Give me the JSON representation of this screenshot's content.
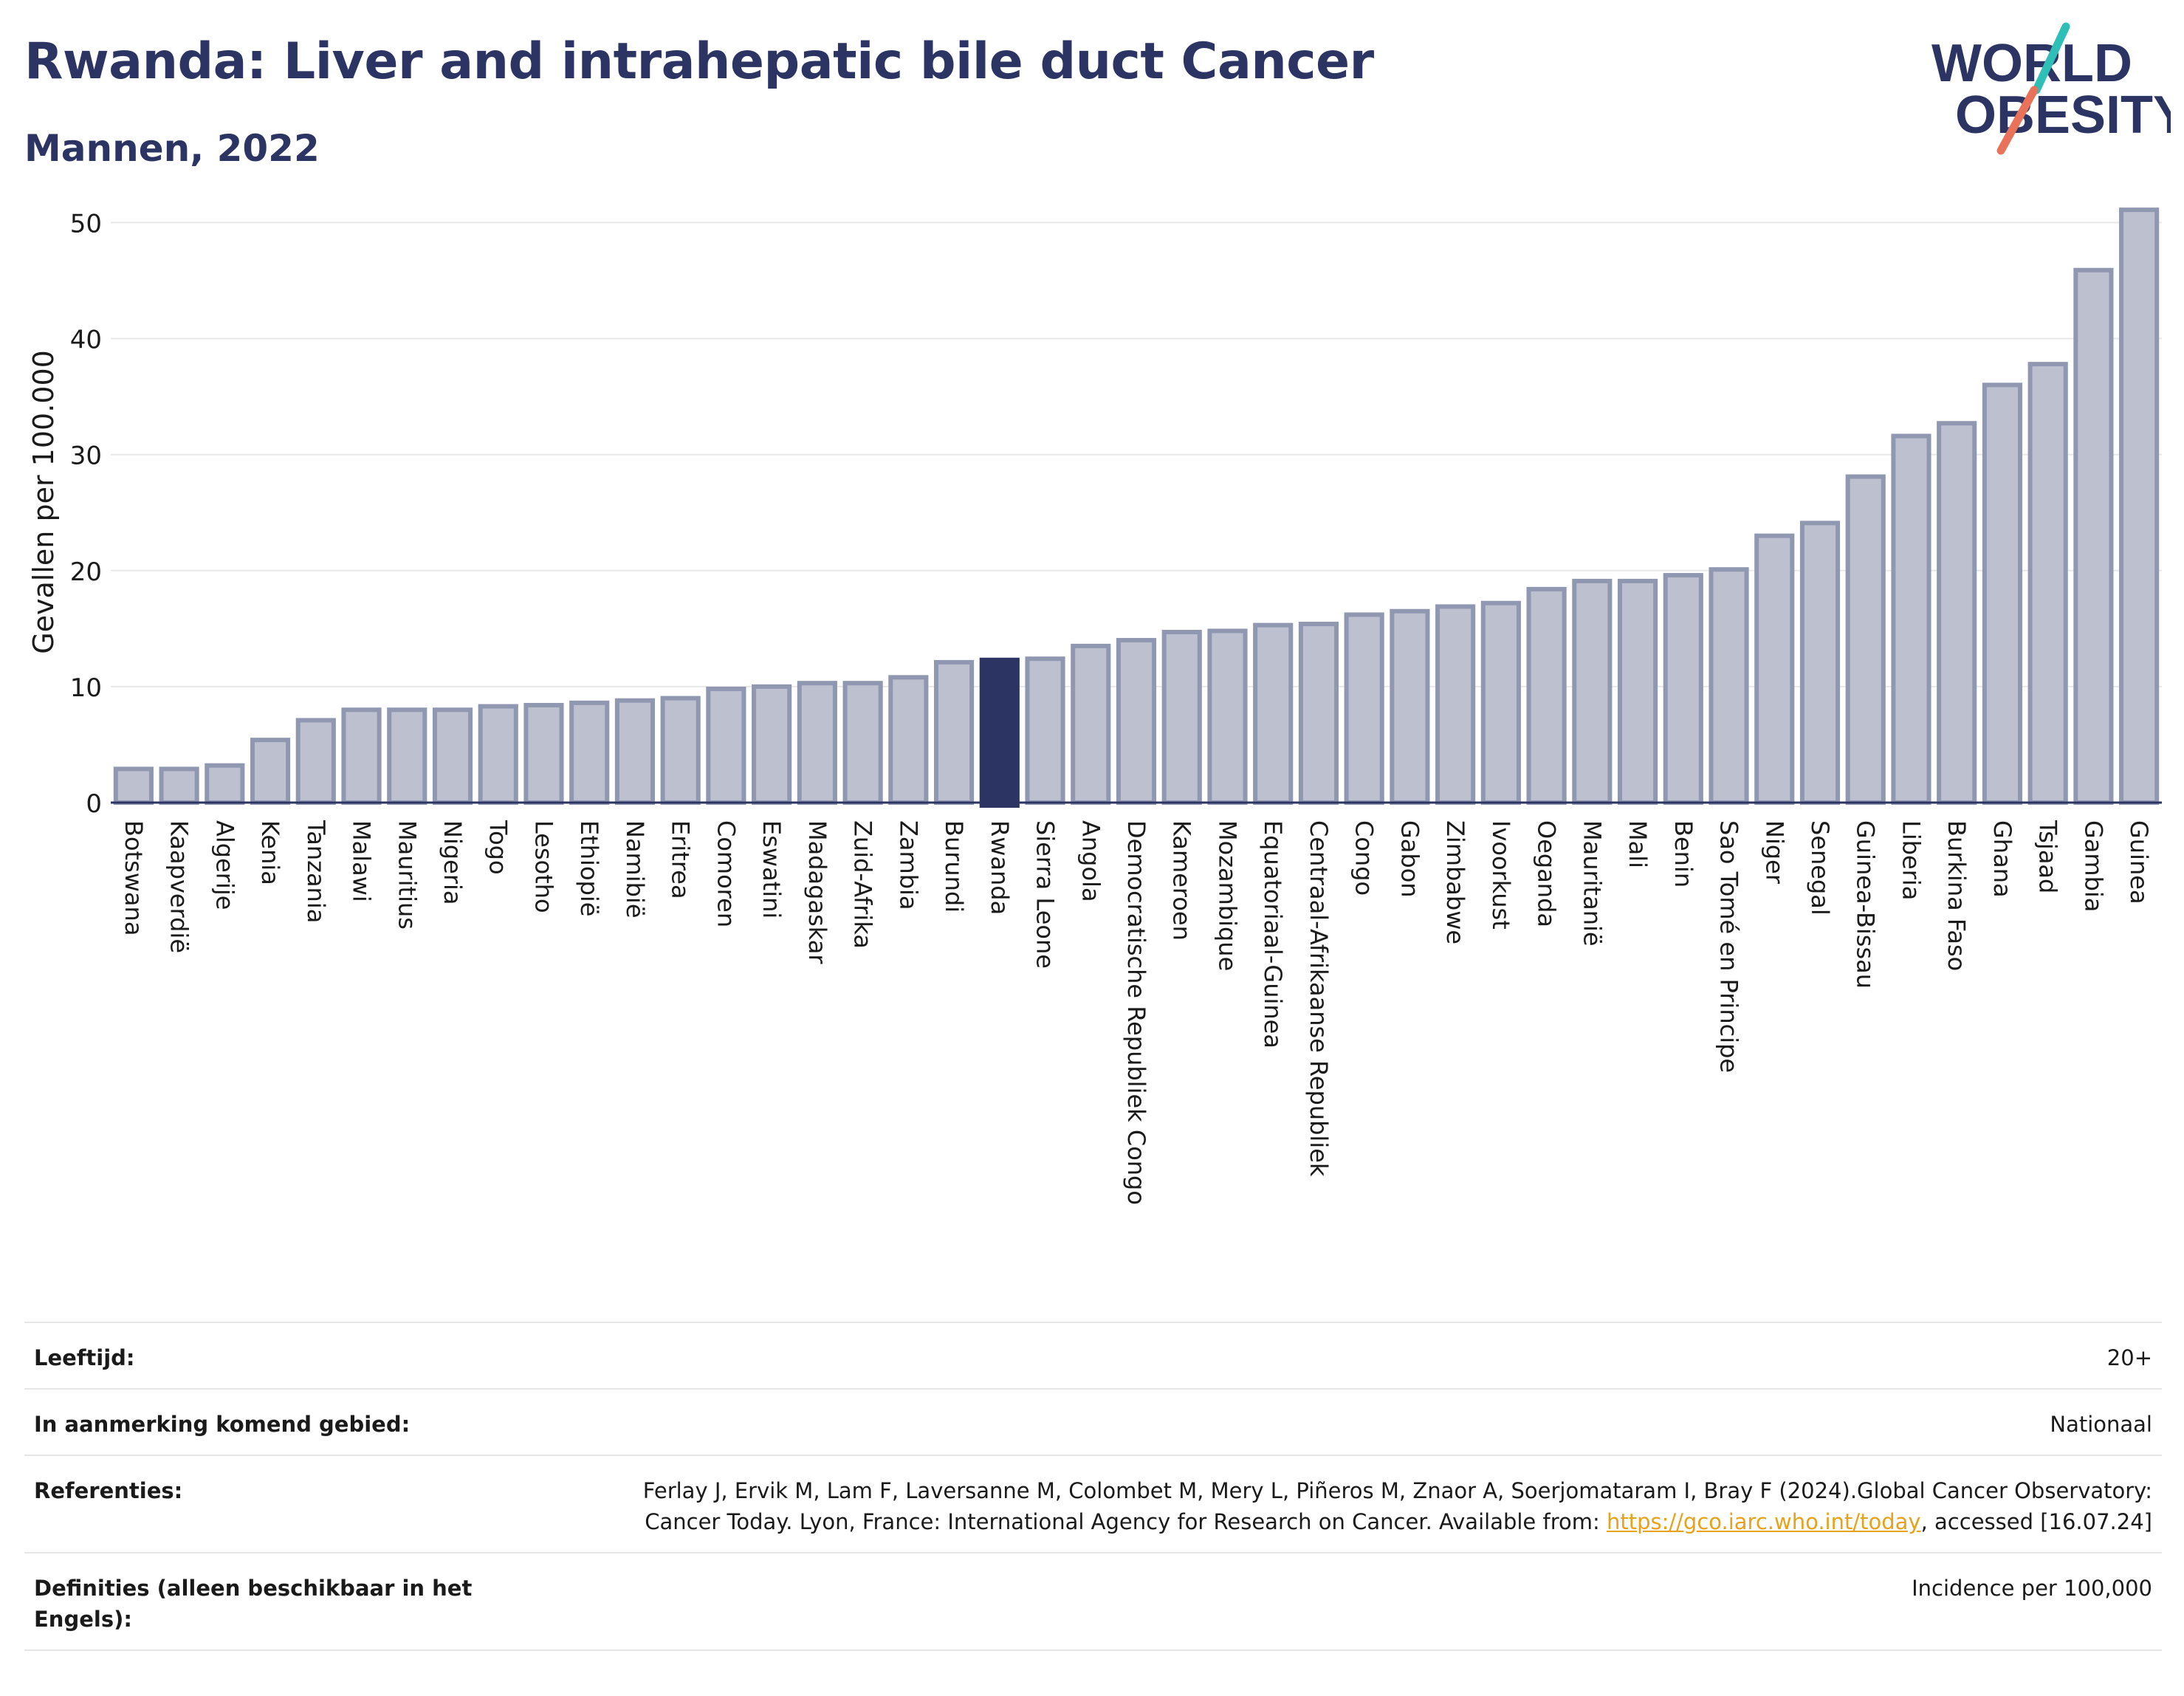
{
  "title": "Rwanda: Liver and intrahepatic bile duct Cancer",
  "subtitle": "Mannen, 2022",
  "logo": {
    "line1": "WORLD",
    "line2": "OBESITY",
    "icon": "world-obesity-logo",
    "text_color": "#2b3463",
    "slash_colors": [
      "#2fbfb6",
      "#e8725a"
    ]
  },
  "colors": {
    "bar": "#bcc0cf",
    "bar_stroke": "#9097b1",
    "highlight": "#2b3463",
    "grid": "#e8e8e8",
    "axis": "#2b3463"
  },
  "chart_data": {
    "type": "bar",
    "ylabel": "Gevallen per 100.000",
    "ylim": [
      0,
      52
    ],
    "yticks": [
      0,
      10,
      20,
      30,
      40,
      50
    ],
    "highlight": "Rwanda",
    "grid": true,
    "categories": [
      "Botswana",
      "Kaapverdië",
      "Algerije",
      "Kenia",
      "Tanzania",
      "Malawi",
      "Mauritius",
      "Nigeria",
      "Togo",
      "Lesotho",
      "Ethiopië",
      "Namibië",
      "Eritrea",
      "Comoren",
      "Eswatini",
      "Madagaskar",
      "Zuid-Afrika",
      "Zambia",
      "Burundi",
      "Rwanda",
      "Sierra Leone",
      "Angola",
      "Democratische Republiek Congo",
      "Kameroen",
      "Mozambique",
      "Equatoriaal-Guinea",
      "Centraal-Afrikaanse Republiek",
      "Congo",
      "Gabon",
      "Zimbabwe",
      "Ivoorkust",
      "Oeganda",
      "Mauritanië",
      "Mali",
      "Benin",
      "Sao Tomé en Principe",
      "Niger",
      "Senegal",
      "Guinea-Bissau",
      "Liberia",
      "Burkina Faso",
      "Ghana",
      "Tsjaad",
      "Gambia",
      "Guinea"
    ],
    "values": [
      2.9,
      2.9,
      3.2,
      5.4,
      7.1,
      8.0,
      8.0,
      8.0,
      8.3,
      8.4,
      8.6,
      8.8,
      9.0,
      9.8,
      10.0,
      10.3,
      10.3,
      10.8,
      12.1,
      12.3,
      12.4,
      13.5,
      14.0,
      14.7,
      14.8,
      15.3,
      15.4,
      16.2,
      16.5,
      16.9,
      17.2,
      18.4,
      19.1,
      19.1,
      19.6,
      20.1,
      23.0,
      24.1,
      28.1,
      31.6,
      32.7,
      36.0,
      37.8,
      45.9,
      51.1
    ]
  },
  "info": [
    {
      "label": "Leeftijd:",
      "value": "20+"
    },
    {
      "label": "In aanmerking komend gebied:",
      "value": "Nationaal"
    },
    {
      "label": "Referenties:",
      "value_before": "Ferlay J, Ervik M, Lam F, Laversanne M, Colombet M, Mery L, Piñeros M, Znaor A, Soerjomataram I, Bray F (2024).Global Cancer Observatory: Cancer Today. Lyon, France: International Agency for Research on Cancer. Available from: ",
      "link": "https://gco.iarc.who.int/today",
      "value_after": ", accessed [16.07.24]"
    },
    {
      "label": "Definities (alleen beschikbaar in het Engels):",
      "value": "Incidence per 100,000"
    }
  ]
}
